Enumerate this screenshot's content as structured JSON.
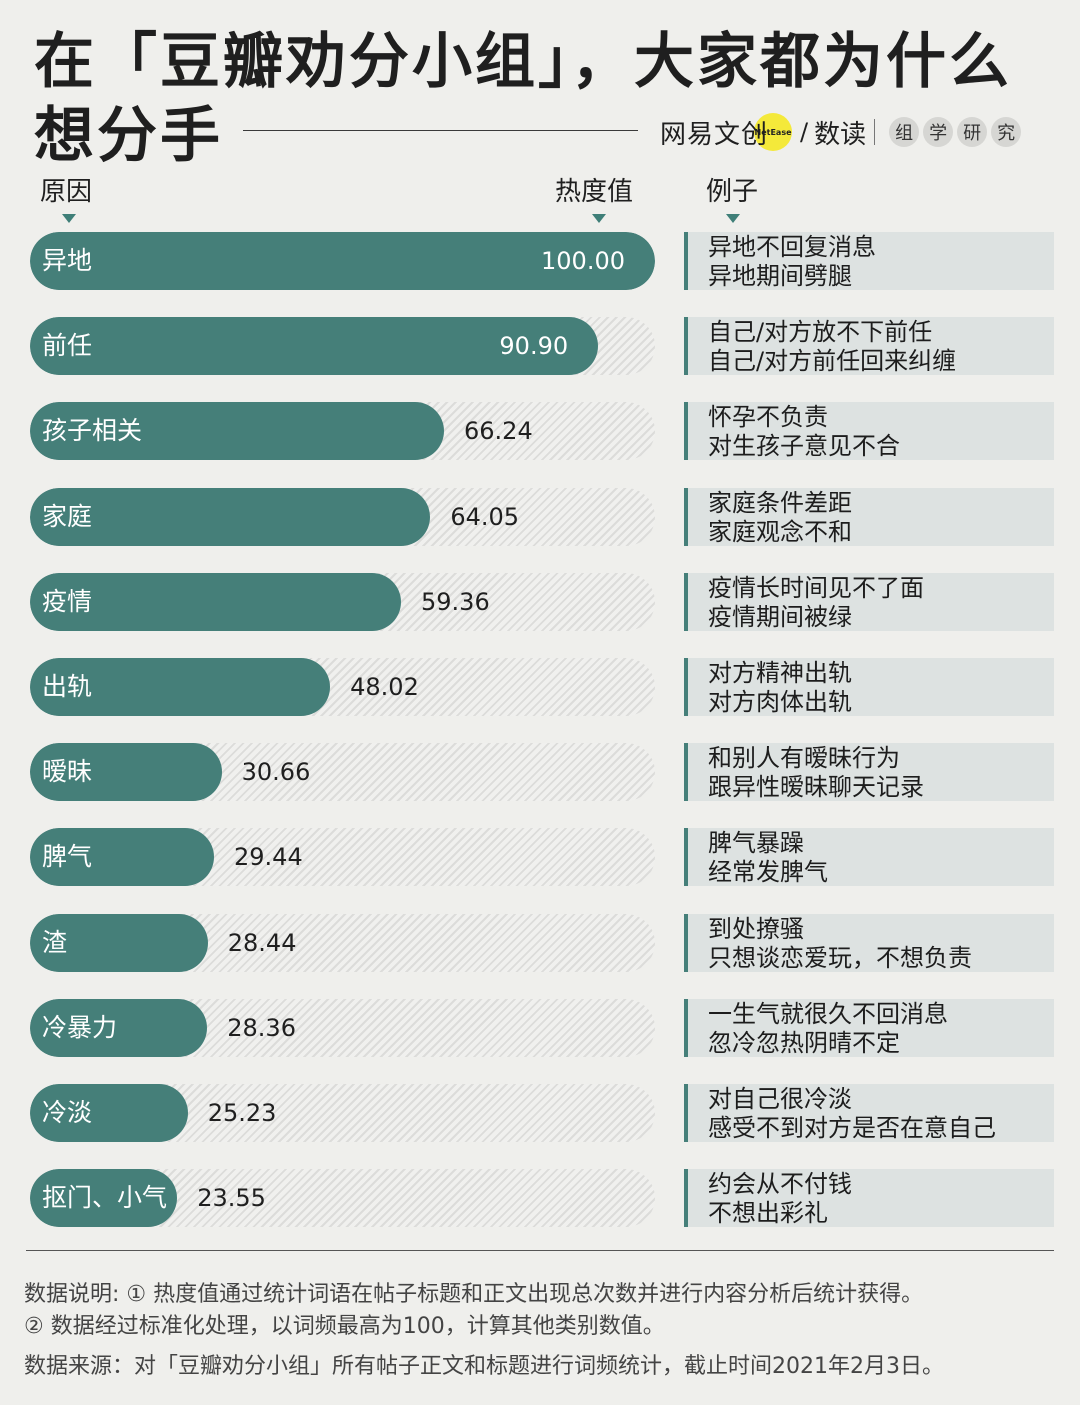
{
  "title": {
    "line1": "在「豆瓣劝分小组」，大家都为什么",
    "line2": "想分手"
  },
  "brand": {
    "name": "网易文创",
    "badge": "NetEase",
    "slash": "/",
    "name2": "数读",
    "lab": [
      "组",
      "学",
      "研",
      "究"
    ]
  },
  "headers": {
    "reason": "原因",
    "heat": "热度值",
    "example": "例子"
  },
  "colors": {
    "bar": "#457f79",
    "track_stripe": "#dcdcda",
    "example_bg": "#dde2e1",
    "brand_dot": "#f4e93a"
  },
  "chart_data": {
    "type": "bar",
    "orientation": "horizontal",
    "xlim": [
      0,
      100
    ],
    "categories": [
      "异地",
      "前任",
      "孩子相关",
      "家庭",
      "疫情",
      "出轨",
      "暧昧",
      "脾气",
      "渣",
      "冷暴力",
      "冷淡",
      "抠门、小气"
    ],
    "values": [
      100.0,
      90.9,
      66.24,
      64.05,
      59.36,
      48.02,
      30.66,
      29.44,
      28.44,
      28.36,
      25.23,
      23.55
    ],
    "value_labels": [
      "100.00",
      "90.90",
      "66.24",
      "64.05",
      "59.36",
      "48.02",
      "30.66",
      "29.44",
      "28.44",
      "28.36",
      "25.23",
      "23.55"
    ],
    "examples": [
      [
        "异地不回复消息",
        "异地期间劈腿"
      ],
      [
        "自己/对方放不下前任",
        "自己/对方前任回来纠缠"
      ],
      [
        "怀孕不负责",
        "对生孩子意见不合"
      ],
      [
        "家庭条件差距",
        "家庭观念不和"
      ],
      [
        "疫情长时间见不了面",
        "疫情期间被绿"
      ],
      [
        "对方精神出轨",
        "对方肉体出轨"
      ],
      [
        "和别人有暧昧行为",
        "跟异性暧昧聊天记录"
      ],
      [
        "脾气暴躁",
        "经常发脾气"
      ],
      [
        "到处撩骚",
        "只想谈恋爱玩，不想负责"
      ],
      [
        "一生气就很久不回消息",
        "忽冷忽热阴晴不定"
      ],
      [
        "对自己很冷淡",
        "感受不到对方是否在意自己"
      ],
      [
        "约会从不付钱",
        "不想出彩礼"
      ]
    ]
  },
  "notes": {
    "line1": "数据说明: ① 热度值通过统计词语在帖子标题和正文出现总次数并进行内容分析后统计获得。",
    "line2": "② 数据经过标准化处理，以词频最高为100，计算其他类别数值。",
    "line3": "数据来源：对「豆瓣劝分小组」所有帖子正文和标题进行词频统计，截止时间2021年2月3日。"
  }
}
